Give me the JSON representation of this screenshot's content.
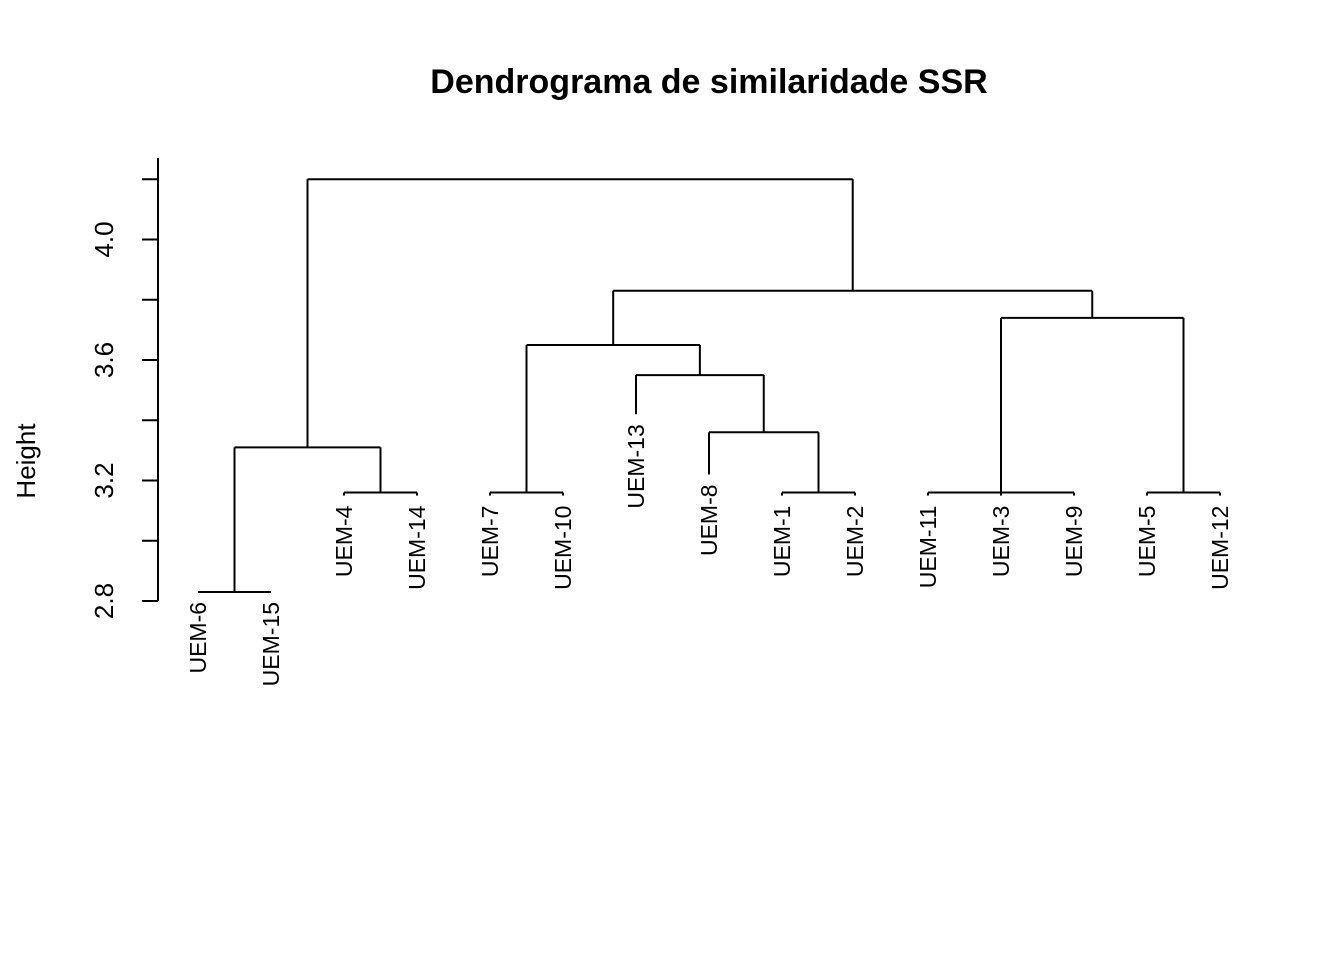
{
  "chart_data": {
    "type": "dendrogram",
    "title": "Dendrograma de similaridade SSR",
    "ylabel": "Height",
    "xlabel": "",
    "ylim": [
      2.8,
      4.2
    ],
    "yticks": [
      "2.8",
      "3.2",
      "3.6",
      "4.0"
    ],
    "ytick_values": [
      2.8,
      3.2,
      3.6,
      4.0
    ],
    "ytick_minor": [
      3.0,
      3.4,
      3.8,
      4.2
    ],
    "leaves": [
      {
        "label": "UEM-6",
        "height": 2.83
      },
      {
        "label": "UEM-15",
        "height": 2.83
      },
      {
        "label": "UEM-4",
        "height": 3.15
      },
      {
        "label": "UEM-14",
        "height": 3.15
      },
      {
        "label": "UEM-7",
        "height": 3.15
      },
      {
        "label": "UEM-10",
        "height": 3.15
      },
      {
        "label": "UEM-13",
        "height": 3.42
      },
      {
        "label": "UEM-8",
        "height": 3.22
      },
      {
        "label": "UEM-1",
        "height": 3.15
      },
      {
        "label": "UEM-2",
        "height": 3.15
      },
      {
        "label": "UEM-11",
        "height": 3.15
      },
      {
        "label": "UEM-3",
        "height": 3.15
      },
      {
        "label": "UEM-9",
        "height": 3.15
      },
      {
        "label": "UEM-5",
        "height": 3.15
      },
      {
        "label": "UEM-12",
        "height": 3.15
      }
    ],
    "merges": [
      {
        "children": [
          0,
          1
        ],
        "height": 2.83
      },
      {
        "children": [
          2,
          3
        ],
        "height": 3.16
      },
      {
        "children": [
          4,
          5
        ],
        "height": 3.16
      },
      {
        "children": [
          8,
          9
        ],
        "height": 3.16
      },
      {
        "children": [
          10,
          11,
          12
        ],
        "height": 3.16
      },
      {
        "children": [
          13,
          14
        ],
        "height": 3.16
      },
      {
        "children": [
          7,
          "m3"
        ],
        "height": 3.36
      },
      {
        "children": [
          6,
          "m6"
        ],
        "height": 3.55
      },
      {
        "children": [
          "m2",
          "m7"
        ],
        "height": 3.65
      },
      {
        "children": [
          "m4",
          "m5"
        ],
        "height": 3.74
      },
      {
        "children": [
          "m8",
          "m9"
        ],
        "height": 3.83
      },
      {
        "children": [
          "m0",
          "m1"
        ],
        "height": 3.31
      },
      {
        "children": [
          "m11",
          "m10"
        ],
        "height": 4.2
      }
    ]
  }
}
